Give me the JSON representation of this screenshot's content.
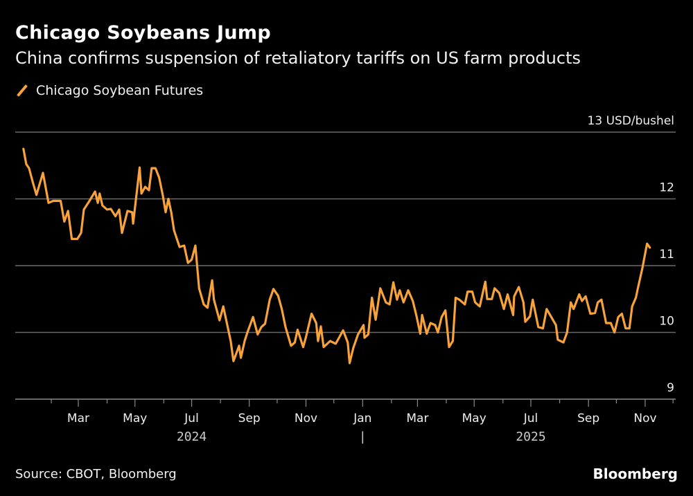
{
  "chart_data": {
    "type": "line",
    "title": "Chicago Soybeans Jump",
    "subtitle": "China confirms suspension of retaliatory tariffs on US farm products",
    "ylabel": "",
    "yunit_label": "13 USD/bushel",
    "ylim": [
      9,
      13
    ],
    "yticks": [
      9,
      10,
      11,
      12,
      13
    ],
    "ytick_labels": [
      "9",
      "10",
      "11",
      "12",
      "13 USD/bushel"
    ],
    "xlim": [
      "2024-01-01",
      "2025-11-15"
    ],
    "xticks": [
      {
        "date": "2024-03-01",
        "label": "Mar"
      },
      {
        "date": "2024-05-01",
        "label": "May"
      },
      {
        "date": "2024-07-01",
        "label": "Jul"
      },
      {
        "date": "2024-09-01",
        "label": "Sep"
      },
      {
        "date": "2024-11-01",
        "label": "Nov"
      },
      {
        "date": "2025-01-01",
        "label": "Jan"
      },
      {
        "date": "2025-03-01",
        "label": "Mar"
      },
      {
        "date": "2025-05-01",
        "label": "May"
      },
      {
        "date": "2025-07-01",
        "label": "Jul"
      },
      {
        "date": "2025-09-01",
        "label": "Sep"
      },
      {
        "date": "2025-11-01",
        "label": "Nov"
      }
    ],
    "year_labels": [
      {
        "date": "2024-07-01",
        "label": "2024"
      },
      {
        "date": "2025-01-01",
        "label": "|"
      },
      {
        "date": "2025-07-01",
        "label": "2025"
      }
    ],
    "grid": true,
    "legend_position": "top-left",
    "series": [
      {
        "name": "Chicago Soybean Futures",
        "color": "#f7a23a",
        "points": [
          [
            "2024-01-02",
            12.75
          ],
          [
            "2024-01-05",
            12.52
          ],
          [
            "2024-01-08",
            12.46
          ],
          [
            "2024-01-12",
            12.25
          ],
          [
            "2024-01-16",
            12.06
          ],
          [
            "2024-01-23",
            12.39
          ],
          [
            "2024-01-29",
            11.94
          ],
          [
            "2024-02-03",
            11.97
          ],
          [
            "2024-02-11",
            11.97
          ],
          [
            "2024-02-15",
            11.66
          ],
          [
            "2024-02-19",
            11.82
          ],
          [
            "2024-02-23",
            11.4
          ],
          [
            "2024-02-29",
            11.4
          ],
          [
            "2024-03-04",
            11.49
          ],
          [
            "2024-03-07",
            11.84
          ],
          [
            "2024-03-13",
            11.97
          ],
          [
            "2024-03-19",
            12.11
          ],
          [
            "2024-03-22",
            11.94
          ],
          [
            "2024-03-24",
            12.08
          ],
          [
            "2024-03-27",
            11.9
          ],
          [
            "2024-04-01",
            11.84
          ],
          [
            "2024-04-05",
            11.85
          ],
          [
            "2024-04-10",
            11.74
          ],
          [
            "2024-04-14",
            11.84
          ],
          [
            "2024-04-17",
            11.49
          ],
          [
            "2024-04-23",
            11.82
          ],
          [
            "2024-04-28",
            11.8
          ],
          [
            "2024-04-29",
            11.63
          ],
          [
            "2024-05-06",
            12.47
          ],
          [
            "2024-05-08",
            12.08
          ],
          [
            "2024-05-12",
            12.18
          ],
          [
            "2024-05-16",
            12.13
          ],
          [
            "2024-05-19",
            12.46
          ],
          [
            "2024-05-23",
            12.46
          ],
          [
            "2024-05-27",
            12.32
          ],
          [
            "2024-05-31",
            12.05
          ],
          [
            "2024-06-03",
            11.8
          ],
          [
            "2024-06-06",
            12.0
          ],
          [
            "2024-06-09",
            11.8
          ],
          [
            "2024-06-12",
            11.53
          ],
          [
            "2024-06-18",
            11.28
          ],
          [
            "2024-06-23",
            11.3
          ],
          [
            "2024-06-27",
            11.04
          ],
          [
            "2024-07-01",
            11.09
          ],
          [
            "2024-07-05",
            11.3
          ],
          [
            "2024-07-09",
            10.66
          ],
          [
            "2024-07-14",
            10.42
          ],
          [
            "2024-07-18",
            10.37
          ],
          [
            "2024-07-23",
            10.78
          ],
          [
            "2024-07-25",
            10.49
          ],
          [
            "2024-07-31",
            10.18
          ],
          [
            "2024-08-04",
            10.39
          ],
          [
            "2024-08-12",
            9.87
          ],
          [
            "2024-08-15",
            9.57
          ],
          [
            "2024-08-21",
            9.8
          ],
          [
            "2024-08-23",
            9.62
          ],
          [
            "2024-08-27",
            9.87
          ],
          [
            "2024-08-30",
            10.0
          ],
          [
            "2024-09-05",
            10.23
          ],
          [
            "2024-09-10",
            9.97
          ],
          [
            "2024-09-14",
            10.08
          ],
          [
            "2024-09-18",
            10.13
          ],
          [
            "2024-09-23",
            10.49
          ],
          [
            "2024-09-27",
            10.65
          ],
          [
            "2024-10-02",
            10.55
          ],
          [
            "2024-10-06",
            10.35
          ],
          [
            "2024-10-10",
            10.08
          ],
          [
            "2024-10-16",
            9.8
          ],
          [
            "2024-10-20",
            9.85
          ],
          [
            "2024-10-23",
            10.04
          ],
          [
            "2024-10-29",
            9.78
          ],
          [
            "2024-11-01",
            9.93
          ],
          [
            "2024-11-07",
            10.28
          ],
          [
            "2024-11-12",
            10.14
          ],
          [
            "2024-11-14",
            9.87
          ],
          [
            "2024-11-17",
            10.09
          ],
          [
            "2024-11-20",
            9.78
          ],
          [
            "2024-11-27",
            9.87
          ],
          [
            "2024-12-03",
            9.83
          ],
          [
            "2024-12-11",
            10.03
          ],
          [
            "2024-12-16",
            9.85
          ],
          [
            "2024-12-18",
            9.54
          ],
          [
            "2024-12-22",
            9.77
          ],
          [
            "2024-12-27",
            9.97
          ],
          [
            "2025-01-02",
            10.11
          ],
          [
            "2025-01-03",
            9.92
          ],
          [
            "2025-01-07",
            9.97
          ],
          [
            "2025-01-11",
            10.52
          ],
          [
            "2025-01-15",
            10.19
          ],
          [
            "2025-01-20",
            10.66
          ],
          [
            "2025-01-26",
            10.45
          ],
          [
            "2025-01-30",
            10.42
          ],
          [
            "2025-02-03",
            10.75
          ],
          [
            "2025-02-07",
            10.49
          ],
          [
            "2025-02-10",
            10.63
          ],
          [
            "2025-02-14",
            10.45
          ],
          [
            "2025-02-19",
            10.63
          ],
          [
            "2025-02-24",
            10.47
          ],
          [
            "2025-02-28",
            10.24
          ],
          [
            "2025-03-04",
            9.98
          ],
          [
            "2025-03-06",
            10.26
          ],
          [
            "2025-03-11",
            9.98
          ],
          [
            "2025-03-15",
            10.14
          ],
          [
            "2025-03-20",
            10.11
          ],
          [
            "2025-03-23",
            10.0
          ],
          [
            "2025-03-27",
            10.23
          ],
          [
            "2025-03-31",
            10.33
          ],
          [
            "2025-04-04",
            9.78
          ],
          [
            "2025-04-08",
            9.87
          ],
          [
            "2025-04-11",
            10.52
          ],
          [
            "2025-04-15",
            10.49
          ],
          [
            "2025-04-21",
            10.42
          ],
          [
            "2025-04-24",
            10.61
          ],
          [
            "2025-04-29",
            10.61
          ],
          [
            "2025-05-02",
            10.45
          ],
          [
            "2025-05-07",
            10.39
          ],
          [
            "2025-05-13",
            10.76
          ],
          [
            "2025-05-15",
            10.5
          ],
          [
            "2025-05-20",
            10.5
          ],
          [
            "2025-05-23",
            10.66
          ],
          [
            "2025-05-28",
            10.59
          ],
          [
            "2025-06-02",
            10.35
          ],
          [
            "2025-06-06",
            10.57
          ],
          [
            "2025-06-12",
            10.26
          ],
          [
            "2025-06-13",
            10.54
          ],
          [
            "2025-06-18",
            10.68
          ],
          [
            "2025-06-23",
            10.45
          ],
          [
            "2025-06-25",
            10.16
          ],
          [
            "2025-06-30",
            10.24
          ],
          [
            "2025-07-03",
            10.49
          ],
          [
            "2025-07-09",
            10.08
          ],
          [
            "2025-07-14",
            10.06
          ],
          [
            "2025-07-18",
            10.35
          ],
          [
            "2025-07-23",
            10.23
          ],
          [
            "2025-07-28",
            10.11
          ],
          [
            "2025-07-30",
            9.89
          ],
          [
            "2025-08-05",
            9.85
          ],
          [
            "2025-08-09",
            10.0
          ],
          [
            "2025-08-13",
            10.45
          ],
          [
            "2025-08-16",
            10.35
          ],
          [
            "2025-08-22",
            10.57
          ],
          [
            "2025-08-25",
            10.47
          ],
          [
            "2025-08-29",
            10.54
          ],
          [
            "2025-09-03",
            10.28
          ],
          [
            "2025-09-08",
            10.29
          ],
          [
            "2025-09-11",
            10.45
          ],
          [
            "2025-09-15",
            10.49
          ],
          [
            "2025-09-20",
            10.14
          ],
          [
            "2025-09-25",
            10.14
          ],
          [
            "2025-09-29",
            10.0
          ],
          [
            "2025-10-03",
            10.23
          ],
          [
            "2025-10-07",
            10.28
          ],
          [
            "2025-10-11",
            10.06
          ],
          [
            "2025-10-15",
            10.06
          ],
          [
            "2025-10-18",
            10.39
          ],
          [
            "2025-10-22",
            10.52
          ],
          [
            "2025-10-24",
            10.65
          ],
          [
            "2025-10-29",
            10.96
          ],
          [
            "2025-11-03",
            11.33
          ],
          [
            "2025-11-06",
            11.27
          ]
        ]
      }
    ]
  },
  "footer": {
    "source": "Source: CBOT, Bloomberg",
    "brand": "Bloomberg"
  }
}
